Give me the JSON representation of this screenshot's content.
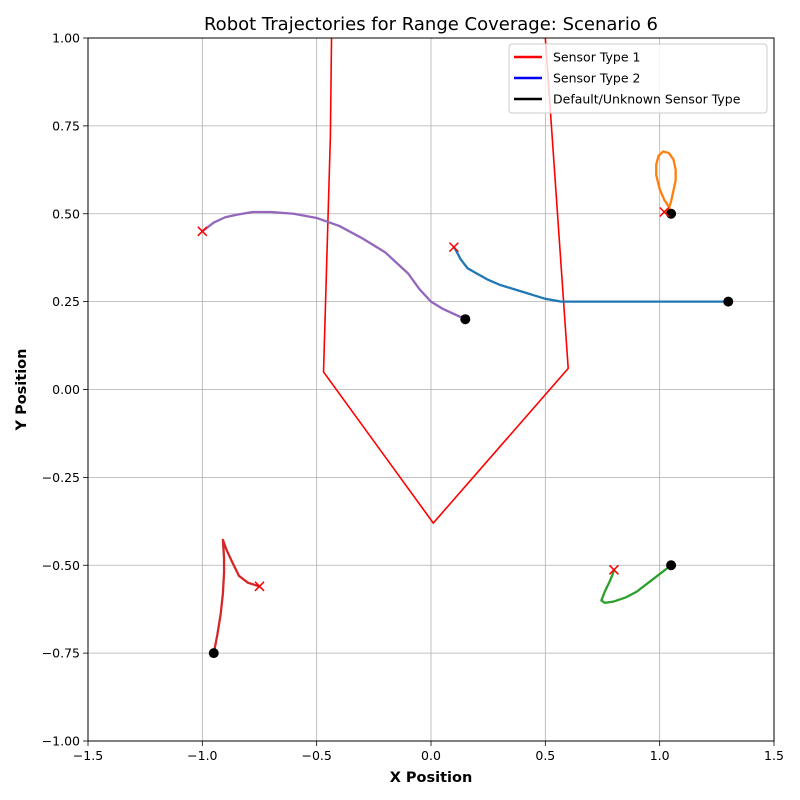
{
  "chart_data": {
    "type": "line",
    "title": "Robot Trajectories for Range Coverage: Scenario 6",
    "xlabel": "X Position",
    "ylabel": "Y Position",
    "xlim": [
      -1.5,
      1.5
    ],
    "ylim": [
      -1.0,
      1.0
    ],
    "xticks": [
      -1.5,
      -1.0,
      -0.5,
      0.0,
      0.5,
      1.0,
      1.5
    ],
    "yticks": [
      -1.0,
      -0.75,
      -0.5,
      -0.25,
      0.0,
      0.25,
      0.5,
      0.75,
      1.0
    ],
    "xtick_labels": [
      "−1.5",
      "−1.0",
      "−0.5",
      "0.0",
      "0.5",
      "1.0",
      "1.5"
    ],
    "ytick_labels": [
      "−1.00",
      "−0.75",
      "−0.50",
      "−0.25",
      "0.00",
      "0.25",
      "0.50",
      "0.75",
      "1.00"
    ],
    "grid": true,
    "legend_position": "top-right",
    "legend": [
      {
        "label": "Sensor Type 1",
        "color": "#ff0000"
      },
      {
        "label": "Sensor Type 2",
        "color": "#0000ff"
      },
      {
        "label": "Default/Unknown Sensor Type",
        "color": "#000000"
      }
    ],
    "sensor_region": {
      "color": "#ff0000",
      "points": [
        [
          -0.435,
          1.0
        ],
        [
          -0.44,
          0.72
        ],
        [
          -0.47,
          0.05
        ],
        [
          0.01,
          -0.38
        ],
        [
          0.6,
          0.06
        ],
        [
          0.5,
          1.0
        ]
      ]
    },
    "trajectories": [
      {
        "color": "#1f77b4",
        "start": [
          1.3,
          0.25
        ],
        "end": [
          0.1,
          0.405
        ],
        "points": [
          [
            1.3,
            0.25
          ],
          [
            1.0,
            0.25
          ],
          [
            0.7,
            0.25
          ],
          [
            0.57,
            0.25
          ],
          [
            0.5,
            0.258
          ],
          [
            0.45,
            0.268
          ],
          [
            0.38,
            0.282
          ],
          [
            0.3,
            0.298
          ],
          [
            0.25,
            0.312
          ],
          [
            0.2,
            0.33
          ],
          [
            0.16,
            0.345
          ],
          [
            0.13,
            0.37
          ],
          [
            0.11,
            0.395
          ],
          [
            0.1,
            0.405
          ]
        ]
      },
      {
        "color": "#ff7f0e",
        "start": [
          1.05,
          0.5
        ],
        "end": [
          1.02,
          0.505
        ],
        "points": [
          [
            1.05,
            0.5
          ],
          [
            1.04,
            0.52
          ],
          [
            1.02,
            0.54
          ],
          [
            1.0,
            0.57
          ],
          [
            0.985,
            0.61
          ],
          [
            0.985,
            0.64
          ],
          [
            0.995,
            0.665
          ],
          [
            1.015,
            0.677
          ],
          [
            1.04,
            0.673
          ],
          [
            1.06,
            0.655
          ],
          [
            1.07,
            0.625
          ],
          [
            1.07,
            0.595
          ],
          [
            1.06,
            0.565
          ],
          [
            1.05,
            0.535
          ],
          [
            1.04,
            0.515
          ],
          [
            1.02,
            0.505
          ]
        ]
      },
      {
        "color": "#2ca02c",
        "start": [
          1.05,
          -0.5
        ],
        "end": [
          0.8,
          -0.513
        ],
        "points": [
          [
            1.05,
            -0.5
          ],
          [
            1.0,
            -0.525
          ],
          [
            0.95,
            -0.55
          ],
          [
            0.9,
            -0.575
          ],
          [
            0.85,
            -0.592
          ],
          [
            0.8,
            -0.603
          ],
          [
            0.76,
            -0.607
          ],
          [
            0.745,
            -0.6
          ],
          [
            0.76,
            -0.575
          ],
          [
            0.78,
            -0.548
          ],
          [
            0.795,
            -0.525
          ],
          [
            0.8,
            -0.513
          ]
        ]
      },
      {
        "color": "#d62728",
        "start": [
          -0.95,
          -0.75
        ],
        "end": [
          -0.75,
          -0.56
        ],
        "points": [
          [
            -0.95,
            -0.75
          ],
          [
            -0.935,
            -0.7
          ],
          [
            -0.92,
            -0.64
          ],
          [
            -0.91,
            -0.58
          ],
          [
            -0.905,
            -0.52
          ],
          [
            -0.905,
            -0.48
          ],
          [
            -0.91,
            -0.428
          ],
          [
            -0.895,
            -0.455
          ],
          [
            -0.87,
            -0.49
          ],
          [
            -0.84,
            -0.53
          ],
          [
            -0.8,
            -0.55
          ],
          [
            -0.75,
            -0.56
          ]
        ]
      },
      {
        "color": "#9467bd",
        "start": [
          0.15,
          0.2
        ],
        "end": [
          -1.0,
          0.45
        ],
        "points": [
          [
            0.15,
            0.2
          ],
          [
            0.1,
            0.215
          ],
          [
            0.05,
            0.23
          ],
          [
            0.0,
            0.25
          ],
          [
            -0.05,
            0.285
          ],
          [
            -0.1,
            0.33
          ],
          [
            -0.2,
            0.39
          ],
          [
            -0.3,
            0.43
          ],
          [
            -0.4,
            0.465
          ],
          [
            -0.5,
            0.488
          ],
          [
            -0.6,
            0.5
          ],
          [
            -0.7,
            0.505
          ],
          [
            -0.78,
            0.505
          ],
          [
            -0.85,
            0.497
          ],
          [
            -0.9,
            0.49
          ],
          [
            -0.95,
            0.475
          ],
          [
            -0.98,
            0.46
          ],
          [
            -1.0,
            0.45
          ]
        ]
      }
    ]
  }
}
